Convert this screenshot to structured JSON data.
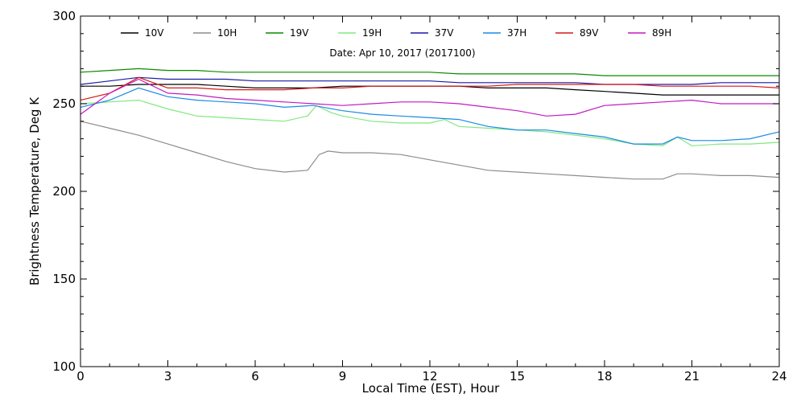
{
  "chart_data": {
    "type": "line",
    "title": "",
    "annotation": "Date: Apr 10, 2017 (2017100)",
    "xlabel": "Local Time (EST), Hour",
    "ylabel": "Brightness Temperature, Deg K",
    "xlim": [
      0,
      24
    ],
    "ylim": [
      100,
      300
    ],
    "xticks": [
      0,
      3,
      6,
      9,
      12,
      15,
      18,
      21,
      24
    ],
    "yticks": [
      100,
      150,
      200,
      250,
      300
    ],
    "grid": false,
    "legend_position": "top",
    "series": [
      {
        "name": "10V",
        "color": "#000000",
        "x": [
          0,
          1,
          2,
          3,
          4,
          5,
          6,
          7,
          8,
          9,
          10,
          11,
          12,
          13,
          14,
          15,
          16,
          17,
          18,
          19,
          20,
          21,
          22,
          23,
          24
        ],
        "y": [
          260,
          260,
          261,
          261,
          261,
          260,
          259,
          259,
          259,
          260,
          260,
          260,
          260,
          260,
          259,
          259,
          259,
          258,
          257,
          256,
          255,
          255,
          255,
          255,
          255
        ]
      },
      {
        "name": "10H",
        "color": "#8c8c8c",
        "x": [
          0,
          1,
          2,
          3,
          4,
          5,
          6,
          7,
          7.8,
          8.2,
          8.5,
          9,
          10,
          11,
          12,
          13,
          14,
          15,
          16,
          17,
          18,
          19,
          20,
          20.5,
          21,
          22,
          23,
          24
        ],
        "y": [
          240,
          236,
          232,
          227,
          222,
          217,
          213,
          211,
          212,
          221,
          223,
          222,
          222,
          221,
          218,
          215,
          212,
          211,
          210,
          209,
          208,
          207,
          207,
          210,
          210,
          209,
          209,
          208
        ]
      },
      {
        "name": "19V",
        "color": "#0a8a00",
        "x": [
          0,
          1,
          2,
          3,
          4,
          5,
          6,
          7,
          8,
          9,
          10,
          11,
          12,
          13,
          14,
          15,
          16,
          17,
          18,
          19,
          20,
          21,
          22,
          23,
          24
        ],
        "y": [
          268,
          269,
          270,
          269,
          269,
          268,
          268,
          268,
          268,
          268,
          268,
          268,
          268,
          267,
          267,
          267,
          267,
          267,
          266,
          266,
          266,
          266,
          266,
          266,
          266
        ]
      },
      {
        "name": "19H",
        "color": "#80e880",
        "x": [
          0,
          1,
          2,
          3,
          4,
          5,
          6,
          7,
          7.8,
          8.1,
          8.6,
          9,
          10,
          11,
          12,
          12.5,
          13,
          14,
          15,
          16,
          17,
          18,
          19,
          20,
          20.5,
          21,
          22,
          23,
          24
        ],
        "y": [
          250,
          251,
          252,
          247,
          243,
          242,
          241,
          240,
          243,
          249,
          245,
          243,
          240,
          239,
          239,
          241,
          237,
          236,
          235,
          234,
          232,
          230,
          227,
          226,
          231,
          226,
          227,
          227,
          228
        ]
      },
      {
        "name": "37V",
        "color": "#1a1aa6",
        "x": [
          0,
          1,
          2,
          3,
          4,
          5,
          6,
          7,
          8,
          9,
          10,
          11,
          12,
          13,
          14,
          15,
          16,
          17,
          18,
          19,
          20,
          21,
          22,
          23,
          24
        ],
        "y": [
          261,
          263,
          265,
          264,
          264,
          264,
          263,
          263,
          263,
          263,
          263,
          263,
          263,
          262,
          262,
          262,
          262,
          262,
          261,
          261,
          261,
          261,
          262,
          262,
          262
        ]
      },
      {
        "name": "37H",
        "color": "#1a8ae6",
        "x": [
          0,
          1,
          2,
          3,
          4,
          5,
          6,
          7,
          8,
          9,
          10,
          11,
          12,
          13,
          14,
          15,
          16,
          17,
          18,
          19,
          20,
          20.5,
          21,
          22,
          23,
          24
        ],
        "y": [
          248,
          252,
          259,
          254,
          252,
          251,
          250,
          248,
          249,
          246,
          244,
          243,
          242,
          241,
          237,
          235,
          235,
          233,
          231,
          227,
          227,
          231,
          229,
          229,
          230,
          234
        ]
      },
      {
        "name": "89V",
        "color": "#d61a1a",
        "x": [
          0,
          1,
          2,
          3,
          4,
          5,
          6,
          7,
          8,
          9,
          10,
          11,
          12,
          13,
          14,
          15,
          16,
          17,
          18,
          19,
          20,
          21,
          22,
          23,
          24
        ],
        "y": [
          252,
          256,
          265,
          259,
          259,
          258,
          258,
          258,
          259,
          259,
          260,
          260,
          260,
          260,
          260,
          261,
          261,
          261,
          261,
          261,
          260,
          260,
          260,
          260,
          259
        ]
      },
      {
        "name": "89H",
        "color": "#c21ac2",
        "x": [
          0,
          1,
          2,
          3,
          4,
          5,
          6,
          7,
          8,
          9,
          10,
          11,
          12,
          13,
          14,
          15,
          16,
          17,
          18,
          19,
          20,
          21,
          22,
          23,
          24
        ],
        "y": [
          244,
          256,
          264,
          256,
          255,
          253,
          252,
          251,
          250,
          249,
          250,
          251,
          251,
          250,
          248,
          246,
          243,
          244,
          249,
          250,
          251,
          252,
          250,
          250,
          250
        ]
      }
    ]
  }
}
